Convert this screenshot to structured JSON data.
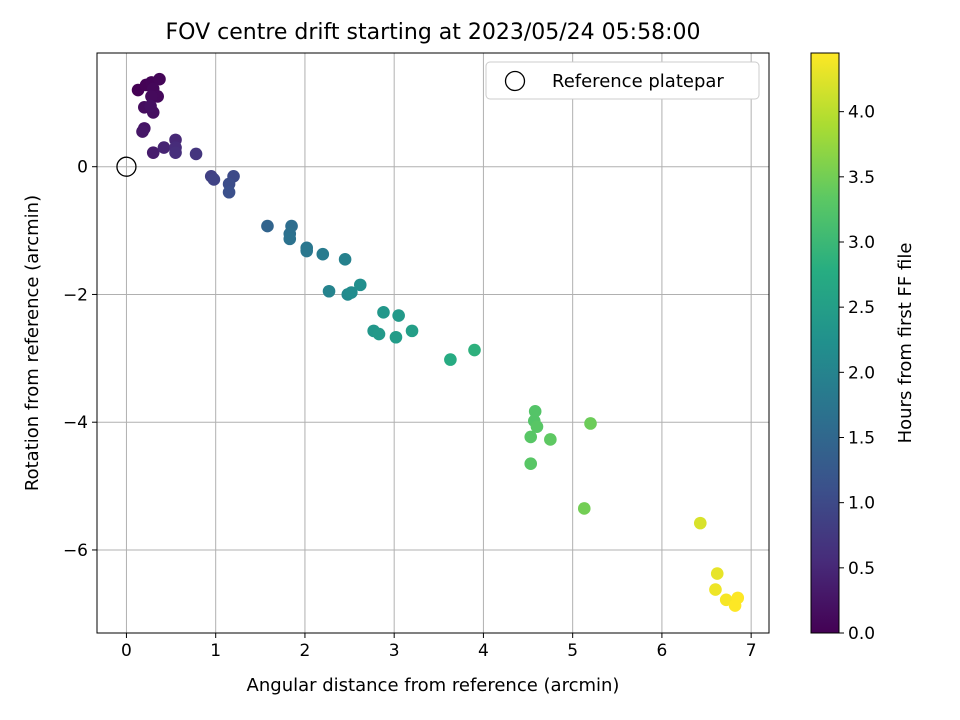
{
  "chart_data": {
    "type": "scatter",
    "title": "FOV centre drift starting at 2023/05/24 05:58:00",
    "xlabel": "Angular distance from reference (arcmin)",
    "ylabel": "Rotation from reference (arcmin)",
    "xlim": [
      -0.33,
      7.2
    ],
    "ylim": [
      -7.3,
      1.78
    ],
    "xticks": [
      0,
      1,
      2,
      3,
      4,
      5,
      6,
      7
    ],
    "xtick_labels": [
      "0",
      "1",
      "2",
      "3",
      "4",
      "5",
      "6",
      "7"
    ],
    "yticks": [
      0,
      -2,
      -4,
      -6
    ],
    "ytick_labels": [
      "0",
      "−2",
      "−4",
      "−6"
    ],
    "grid": true,
    "legend": {
      "placement": "top-right",
      "entries": [
        "Reference platepar"
      ]
    },
    "reference_point": {
      "label": "Reference platepar",
      "x": 0,
      "y": 0
    },
    "colorbar": {
      "label": "Hours from first FF file",
      "range": [
        0,
        4.45
      ],
      "ticks": [
        0.0,
        0.5,
        1.0,
        1.5,
        2.0,
        2.5,
        3.0,
        3.5,
        4.0
      ],
      "tick_labels": [
        "0.0",
        "0.5",
        "1.0",
        "1.5",
        "2.0",
        "2.5",
        "3.0",
        "3.5",
        "4.0"
      ],
      "colormap": "viridis"
    },
    "series": [
      {
        "points": [
          {
            "x": 0.13,
            "y": 1.2,
            "c": 0.0
          },
          {
            "x": 0.22,
            "y": 1.28,
            "c": 0.02
          },
          {
            "x": 0.28,
            "y": 1.32,
            "c": 0.04
          },
          {
            "x": 0.37,
            "y": 1.37,
            "c": 0.06
          },
          {
            "x": 0.3,
            "y": 1.22,
            "c": 0.08
          },
          {
            "x": 0.35,
            "y": 1.1,
            "c": 0.1
          },
          {
            "x": 0.28,
            "y": 1.1,
            "c": 0.12
          },
          {
            "x": 0.2,
            "y": 0.93,
            "c": 0.15
          },
          {
            "x": 0.3,
            "y": 0.85,
            "c": 0.18
          },
          {
            "x": 0.27,
            "y": 0.95,
            "c": 0.2
          },
          {
            "x": 0.2,
            "y": 0.6,
            "c": 0.25
          },
          {
            "x": 0.18,
            "y": 0.55,
            "c": 0.28
          },
          {
            "x": 0.3,
            "y": 0.22,
            "c": 0.35
          },
          {
            "x": 0.42,
            "y": 0.3,
            "c": 0.45
          },
          {
            "x": 0.55,
            "y": 0.42,
            "c": 0.5
          },
          {
            "x": 0.55,
            "y": 0.3,
            "c": 0.55
          },
          {
            "x": 0.55,
            "y": 0.22,
            "c": 0.6
          },
          {
            "x": 0.78,
            "y": 0.2,
            "c": 0.7
          },
          {
            "x": 0.95,
            "y": -0.15,
            "c": 0.85
          },
          {
            "x": 0.98,
            "y": -0.2,
            "c": 0.9
          },
          {
            "x": 1.2,
            "y": -0.15,
            "c": 1.0
          },
          {
            "x": 1.15,
            "y": -0.27,
            "c": 1.05
          },
          {
            "x": 1.15,
            "y": -0.4,
            "c": 1.1
          },
          {
            "x": 1.58,
            "y": -0.93,
            "c": 1.45
          },
          {
            "x": 1.85,
            "y": -0.93,
            "c": 1.6
          },
          {
            "x": 1.83,
            "y": -1.05,
            "c": 1.65
          },
          {
            "x": 1.83,
            "y": -1.13,
            "c": 1.68
          },
          {
            "x": 2.02,
            "y": -1.27,
            "c": 1.75
          },
          {
            "x": 2.02,
            "y": -1.32,
            "c": 1.78
          },
          {
            "x": 2.2,
            "y": -1.37,
            "c": 1.85
          },
          {
            "x": 2.45,
            "y": -1.45,
            "c": 1.95
          },
          {
            "x": 2.27,
            "y": -1.95,
            "c": 2.0
          },
          {
            "x": 2.48,
            "y": -2.0,
            "c": 2.1
          },
          {
            "x": 2.52,
            "y": -1.97,
            "c": 2.15
          },
          {
            "x": 2.62,
            "y": -1.85,
            "c": 2.2
          },
          {
            "x": 2.88,
            "y": -2.28,
            "c": 2.35
          },
          {
            "x": 3.05,
            "y": -2.33,
            "c": 2.4
          },
          {
            "x": 2.77,
            "y": -2.57,
            "c": 2.35
          },
          {
            "x": 2.83,
            "y": -2.62,
            "c": 2.4
          },
          {
            "x": 3.02,
            "y": -2.67,
            "c": 2.45
          },
          {
            "x": 3.2,
            "y": -2.57,
            "c": 2.5
          },
          {
            "x": 3.63,
            "y": -3.02,
            "c": 2.75
          },
          {
            "x": 3.9,
            "y": -2.87,
            "c": 2.85
          },
          {
            "x": 4.58,
            "y": -3.83,
            "c": 3.25
          },
          {
            "x": 4.57,
            "y": -3.98,
            "c": 3.25
          },
          {
            "x": 4.6,
            "y": -4.07,
            "c": 3.3
          },
          {
            "x": 4.53,
            "y": -4.23,
            "c": 3.3
          },
          {
            "x": 4.75,
            "y": -4.27,
            "c": 3.35
          },
          {
            "x": 4.53,
            "y": -4.65,
            "c": 3.3
          },
          {
            "x": 5.2,
            "y": -4.02,
            "c": 3.45
          },
          {
            "x": 5.13,
            "y": -5.35,
            "c": 3.5
          },
          {
            "x": 6.43,
            "y": -5.58,
            "c": 4.2
          },
          {
            "x": 6.62,
            "y": -6.37,
            "c": 4.3
          },
          {
            "x": 6.6,
            "y": -6.62,
            "c": 4.35
          },
          {
            "x": 6.72,
            "y": -6.78,
            "c": 4.4
          },
          {
            "x": 6.85,
            "y": -6.75,
            "c": 4.45
          },
          {
            "x": 6.82,
            "y": -6.87,
            "c": 4.45
          }
        ]
      }
    ]
  }
}
